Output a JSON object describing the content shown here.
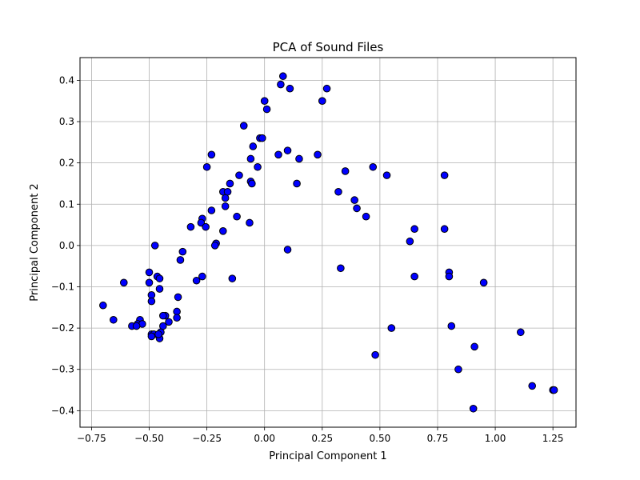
{
  "chart_data": {
    "type": "scatter",
    "title": "PCA of Sound Files",
    "xlabel": "Principal Component 1",
    "ylabel": "Principal Component 2",
    "xlim": [
      -0.8,
      1.35
    ],
    "ylim": [
      -0.44,
      0.455
    ],
    "xticks": [
      -0.75,
      -0.5,
      -0.25,
      0.0,
      0.25,
      0.5,
      0.75,
      1.0,
      1.25
    ],
    "xtick_labels": [
      "−0.75",
      "−0.50",
      "−0.25",
      "0.00",
      "0.25",
      "0.50",
      "0.75",
      "1.00",
      "1.25"
    ],
    "yticks": [
      -0.4,
      -0.3,
      -0.2,
      -0.1,
      0.0,
      0.1,
      0.2,
      0.3,
      0.4
    ],
    "ytick_labels": [
      "−0.4",
      "−0.3",
      "−0.2",
      "−0.1",
      "0.0",
      "0.1",
      "0.2",
      "0.3",
      "0.4"
    ],
    "grid": true,
    "marker_color": "#0000ff",
    "marker_edge_color": "#000000",
    "series": [
      {
        "points": [
          [
            0.08,
            0.41
          ],
          [
            0.27,
            0.38
          ],
          [
            0.07,
            0.39
          ],
          [
            0.11,
            0.38
          ],
          [
            0.25,
            0.35
          ],
          [
            0.0,
            0.35
          ],
          [
            0.01,
            0.33
          ],
          [
            -0.09,
            0.29
          ],
          [
            -0.02,
            0.26
          ],
          [
            -0.01,
            0.26
          ],
          [
            -0.05,
            0.24
          ],
          [
            0.06,
            0.22
          ],
          [
            0.1,
            0.23
          ],
          [
            -0.03,
            0.19
          ],
          [
            -0.06,
            0.21
          ],
          [
            0.15,
            0.21
          ],
          [
            0.23,
            0.22
          ],
          [
            -0.23,
            0.22
          ],
          [
            -0.25,
            0.19
          ],
          [
            0.35,
            0.18
          ],
          [
            0.47,
            0.19
          ],
          [
            0.53,
            0.17
          ],
          [
            0.78,
            0.17
          ],
          [
            -0.11,
            0.17
          ],
          [
            -0.15,
            0.15
          ],
          [
            -0.06,
            0.155
          ],
          [
            -0.055,
            0.15
          ],
          [
            0.14,
            0.15
          ],
          [
            -0.18,
            0.13
          ],
          [
            -0.16,
            0.13
          ],
          [
            -0.17,
            0.115
          ],
          [
            0.32,
            0.13
          ],
          [
            0.39,
            0.11
          ],
          [
            0.4,
            0.09
          ],
          [
            -0.17,
            0.095
          ],
          [
            -0.23,
            0.085
          ],
          [
            -0.12,
            0.07
          ],
          [
            0.44,
            0.07
          ],
          [
            -0.27,
            0.065
          ],
          [
            -0.275,
            0.055
          ],
          [
            -0.065,
            0.055
          ],
          [
            -0.255,
            0.045
          ],
          [
            -0.32,
            0.045
          ],
          [
            0.65,
            0.04
          ],
          [
            0.78,
            0.04
          ],
          [
            -0.18,
            0.035
          ],
          [
            0.63,
            0.01
          ],
          [
            -0.21,
            0.005
          ],
          [
            -0.215,
            0.0
          ],
          [
            -0.475,
            0.0
          ],
          [
            -0.355,
            -0.015
          ],
          [
            0.1,
            -0.01
          ],
          [
            -0.365,
            -0.035
          ],
          [
            0.33,
            -0.055
          ],
          [
            -0.5,
            -0.065
          ],
          [
            0.8,
            -0.065
          ],
          [
            0.8,
            -0.075
          ],
          [
            0.65,
            -0.075
          ],
          [
            -0.465,
            -0.075
          ],
          [
            -0.455,
            -0.08
          ],
          [
            -0.27,
            -0.075
          ],
          [
            -0.295,
            -0.085
          ],
          [
            -0.14,
            -0.08
          ],
          [
            -0.61,
            -0.09
          ],
          [
            -0.5,
            -0.09
          ],
          [
            0.95,
            -0.09
          ],
          [
            -0.455,
            -0.105
          ],
          [
            -0.49,
            -0.12
          ],
          [
            -0.375,
            -0.125
          ],
          [
            -0.49,
            -0.135
          ],
          [
            -0.7,
            -0.145
          ],
          [
            -0.38,
            -0.16
          ],
          [
            -0.43,
            -0.17
          ],
          [
            -0.44,
            -0.17
          ],
          [
            -0.38,
            -0.175
          ],
          [
            -0.655,
            -0.18
          ],
          [
            -0.54,
            -0.18
          ],
          [
            -0.415,
            -0.185
          ],
          [
            -0.55,
            -0.19
          ],
          [
            -0.53,
            -0.19
          ],
          [
            -0.575,
            -0.195
          ],
          [
            -0.555,
            -0.195
          ],
          [
            -0.44,
            -0.195
          ],
          [
            0.81,
            -0.195
          ],
          [
            0.55,
            -0.2
          ],
          [
            -0.45,
            -0.21
          ],
          [
            1.11,
            -0.21
          ],
          [
            -0.49,
            -0.215
          ],
          [
            -0.48,
            -0.215
          ],
          [
            -0.49,
            -0.22
          ],
          [
            -0.455,
            -0.225
          ],
          [
            -0.46,
            -0.215
          ],
          [
            0.91,
            -0.245
          ],
          [
            0.48,
            -0.265
          ],
          [
            0.84,
            -0.3
          ],
          [
            1.16,
            -0.34
          ],
          [
            1.25,
            -0.35
          ],
          [
            1.255,
            -0.35
          ],
          [
            0.905,
            -0.395
          ]
        ]
      }
    ]
  }
}
